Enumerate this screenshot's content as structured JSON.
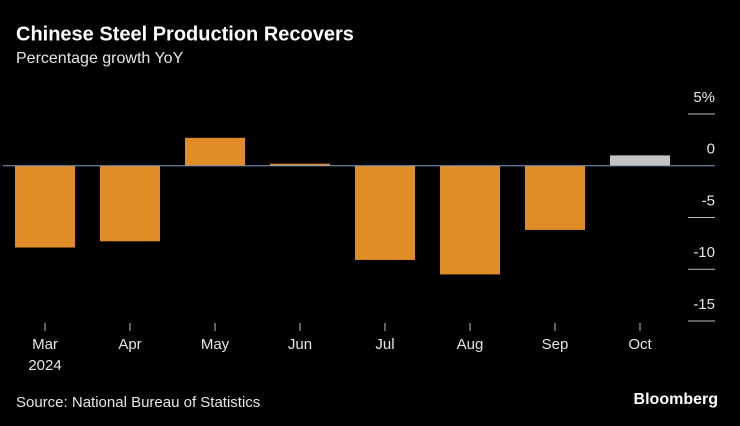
{
  "chart_data": {
    "type": "bar",
    "title": "Chinese Steel Production Recovers",
    "subtitle": "Percentage growth YoY",
    "categories": [
      "Mar",
      "Apr",
      "May",
      "Jun",
      "Jul",
      "Aug",
      "Sep",
      "Oct"
    ],
    "year": "2024",
    "values": [
      -7.9,
      -7.3,
      2.7,
      0.2,
      -9.1,
      -10.5,
      -6.2,
      1.0
    ],
    "colors": [
      "#e08d28",
      "#e08d28",
      "#e08d28",
      "#e08d28",
      "#e08d28",
      "#e08d28",
      "#e08d28",
      "#c4c4c4"
    ],
    "ylim": [
      -15,
      5
    ],
    "yticks": [
      {
        "value": 5,
        "label": "5%"
      },
      0,
      -5,
      -10,
      -15
    ],
    "grid": true,
    "source": "Source: National Bureau of Statistics",
    "brand": "Bloomberg"
  }
}
